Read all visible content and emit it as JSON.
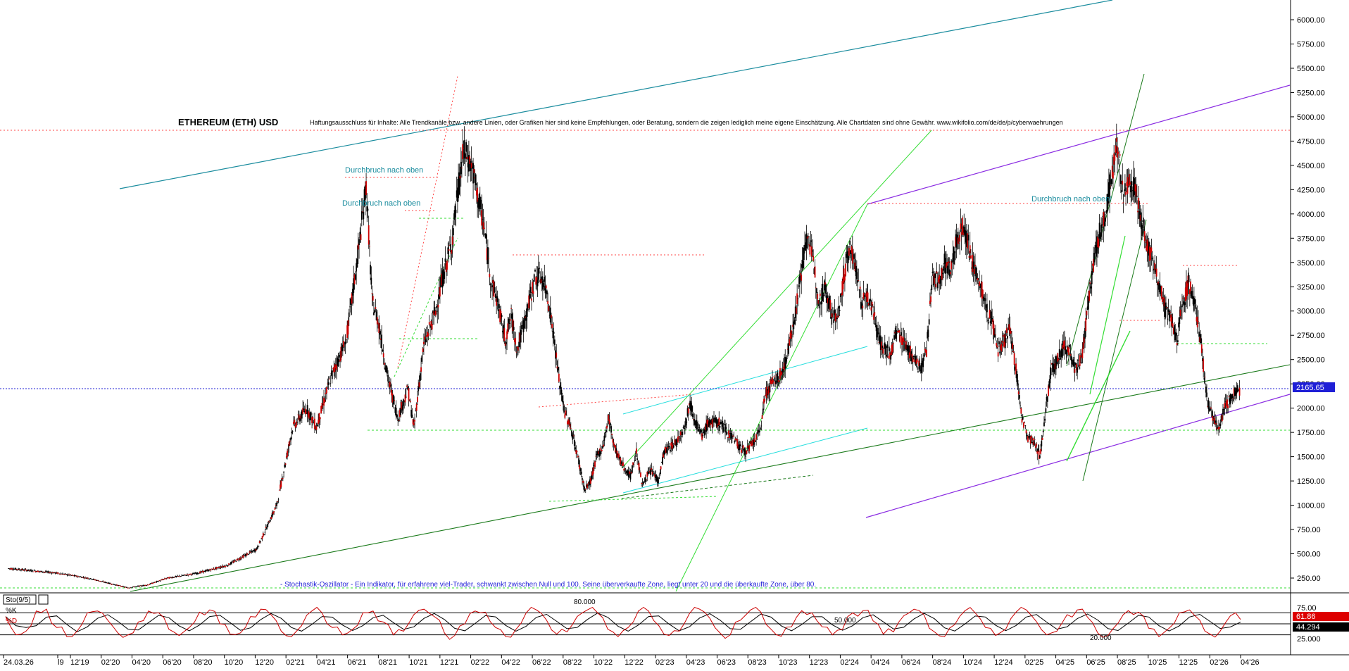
{
  "chart_data": {
    "type": "line",
    "title": "ETHEREUM (ETH) USD",
    "disclaimer": "Haftungsausschluss für Inhalte: Alle Trendkanäle bzw. andere Linien, oder Grafiken hier sind keine Empfehlungen, oder Beratung, sondern die zeigen lediglich meine eigene Einschätzung. Alle Chartdaten sind ohne Gewähr. www.wikifolio.com/de/de/p/cyberwaehrungen",
    "annotations": [
      "Durchbruch nach oben",
      "Durchbruch nach oben",
      "Durchbruch nach oben!"
    ],
    "stochastic_note": "- Stochastik-Oszillator - Ein Indikator, für erfahrene viel-Trader, schwankt zwischen Null und 100. Seine überverkaufte Zone, liegt unter 20 und die überkaufte Zone, über 80.",
    "y_ticks": [
      "6000.00",
      "5750.00",
      "5500.00",
      "5250.00",
      "5000.00",
      "4750.00",
      "4500.00",
      "4250.00",
      "4000.00",
      "3750.00",
      "3500.00",
      "3250.00",
      "3000.00",
      "2750.00",
      "2500.00",
      "2250.00",
      "2000.00",
      "1750.00",
      "1500.00",
      "1250.00",
      "1000.00",
      "750.00",
      "500.00",
      "250.00"
    ],
    "ylim": [
      0,
      6200
    ],
    "last_price": "2165.65",
    "x_ticks": [
      "24.03.26",
      "l9",
      "12'19",
      "02'20",
      "04'20",
      "06'20",
      "08'20",
      "10'20",
      "12'20",
      "02'21",
      "04'21",
      "06'21",
      "08'21",
      "10'21",
      "12'21",
      "02'22",
      "04'22",
      "06'22",
      "08'22",
      "10'22",
      "12'22",
      "02'23",
      "04'23",
      "06'23",
      "08'23",
      "10'23",
      "12'23",
      "02'24",
      "04'24",
      "06'24",
      "08'24",
      "10'24",
      "12'24",
      "02'25",
      "04'25",
      "06'25",
      "08'25",
      "10'25",
      "12'25",
      "02'26",
      "04'26"
    ],
    "price_path": [
      [
        0,
        350
      ],
      [
        25,
        300
      ],
      [
        40,
        250
      ],
      [
        50,
        200
      ],
      [
        60,
        150
      ],
      [
        70,
        180
      ],
      [
        80,
        250
      ],
      [
        95,
        300
      ],
      [
        110,
        380
      ],
      [
        125,
        550
      ],
      [
        135,
        1000
      ],
      [
        143,
        1800
      ],
      [
        150,
        2000
      ],
      [
        155,
        1800
      ],
      [
        162,
        2300
      ],
      [
        170,
        2700
      ],
      [
        176,
        3600
      ],
      [
        180,
        4300
      ],
      [
        183,
        3100
      ],
      [
        186,
        2900
      ],
      [
        191,
        2300
      ],
      [
        196,
        1900
      ],
      [
        201,
        2200
      ],
      [
        204,
        1800
      ],
      [
        209,
        2650
      ],
      [
        215,
        3000
      ],
      [
        218,
        3300
      ],
      [
        223,
        3700
      ],
      [
        226,
        4200
      ],
      [
        229,
        4650
      ],
      [
        233,
        4500
      ],
      [
        236,
        4200
      ],
      [
        239,
        3900
      ],
      [
        243,
        3300
      ],
      [
        246,
        3100
      ],
      [
        250,
        2700
      ],
      [
        253,
        2950
      ],
      [
        256,
        2600
      ],
      [
        261,
        3000
      ],
      [
        265,
        3350
      ],
      [
        268,
        3350
      ],
      [
        271,
        3200
      ],
      [
        274,
        2800
      ],
      [
        277,
        2300
      ],
      [
        280,
        1950
      ],
      [
        283,
        1800
      ],
      [
        287,
        1450
      ],
      [
        290,
        1150
      ],
      [
        293,
        1250
      ],
      [
        296,
        1500
      ],
      [
        299,
        1600
      ],
      [
        302,
        1900
      ],
      [
        305,
        1600
      ],
      [
        308,
        1450
      ],
      [
        311,
        1350
      ],
      [
        313,
        1300
      ],
      [
        316,
        1550
      ],
      [
        319,
        1200
      ],
      [
        321,
        1300
      ],
      [
        324,
        1350
      ],
      [
        327,
        1250
      ],
      [
        330,
        1550
      ],
      [
        333,
        1600
      ],
      [
        336,
        1650
      ],
      [
        340,
        1800
      ],
      [
        343,
        2050
      ],
      [
        346,
        1850
      ],
      [
        349,
        1700
      ],
      [
        352,
        1850
      ],
      [
        355,
        1850
      ],
      [
        358,
        1850
      ],
      [
        362,
        1750
      ],
      [
        365,
        1700
      ],
      [
        368,
        1600
      ],
      [
        371,
        1550
      ],
      [
        375,
        1650
      ],
      [
        378,
        1750
      ],
      [
        381,
        2150
      ],
      [
        384,
        2250
      ],
      [
        387,
        2300
      ],
      [
        390,
        2400
      ],
      [
        393,
        2650
      ],
      [
        396,
        3000
      ],
      [
        399,
        3400
      ],
      [
        402,
        3800
      ],
      [
        405,
        3500
      ],
      [
        408,
        3100
      ],
      [
        411,
        3250
      ],
      [
        414,
        3000
      ],
      [
        417,
        2900
      ],
      [
        420,
        3300
      ],
      [
        423,
        3650
      ],
      [
        426,
        3500
      ],
      [
        429,
        3100
      ],
      [
        432,
        3150
      ],
      [
        435,
        3050
      ],
      [
        438,
        2700
      ],
      [
        441,
        2600
      ],
      [
        444,
        2550
      ],
      [
        447,
        2800
      ],
      [
        450,
        2700
      ],
      [
        453,
        2600
      ],
      [
        456,
        2500
      ],
      [
        459,
        2400
      ],
      [
        462,
        2600
      ],
      [
        465,
        3350
      ],
      [
        468,
        3300
      ],
      [
        471,
        3500
      ],
      [
        474,
        3400
      ],
      [
        477,
        3700
      ],
      [
        480,
        3900
      ],
      [
        483,
        3700
      ],
      [
        486,
        3400
      ],
      [
        489,
        3300
      ],
      [
        492,
        3000
      ],
      [
        495,
        2900
      ],
      [
        498,
        2600
      ],
      [
        501,
        2700
      ],
      [
        504,
        2800
      ],
      [
        507,
        2400
      ],
      [
        510,
        1900
      ],
      [
        513,
        1700
      ],
      [
        516,
        1650
      ],
      [
        519,
        1500
      ],
      [
        522,
        2000
      ],
      [
        525,
        2400
      ],
      [
        528,
        2500
      ],
      [
        531,
        2650
      ],
      [
        534,
        2600
      ],
      [
        537,
        2400
      ],
      [
        540,
        2500
      ],
      [
        543,
        3000
      ],
      [
        546,
        3500
      ],
      [
        549,
        3800
      ],
      [
        552,
        4000
      ],
      [
        555,
        4400
      ],
      [
        558,
        4700
      ],
      [
        561,
        4200
      ],
      [
        564,
        4300
      ],
      [
        567,
        4300
      ],
      [
        570,
        3900
      ],
      [
        573,
        3700
      ],
      [
        576,
        3500
      ],
      [
        579,
        3300
      ],
      [
        582,
        3000
      ],
      [
        585,
        2900
      ],
      [
        588,
        2700
      ],
      [
        591,
        3100
      ],
      [
        594,
        3300
      ],
      [
        597,
        3050
      ],
      [
        600,
        2700
      ],
      [
        603,
        2100
      ],
      [
        606,
        1900
      ],
      [
        609,
        1800
      ],
      [
        612,
        2000
      ],
      [
        615,
        2100
      ],
      [
        618,
        2200
      ],
      [
        620,
        2165
      ]
    ],
    "stoch_k": [
      70,
      20,
      30,
      85,
      90,
      40,
      15,
      30,
      80,
      85,
      60,
      25,
      20,
      55,
      85,
      80,
      35,
      18,
      40,
      82,
      88,
      50,
      22,
      25,
      70,
      90,
      75,
      30,
      15,
      45,
      85,
      80,
      40,
      20,
      35,
      80,
      85,
      55,
      20,
      30,
      75,
      90,
      70,
      25,
      18,
      50,
      85,
      82,
      40,
      15,
      35,
      80,
      88,
      60,
      22,
      28,
      70,
      88,
      80,
      35,
      15,
      40,
      85,
      85,
      45,
      18,
      30,
      78,
      90,
      65,
      25,
      20,
      60,
      88,
      82,
      35,
      16,
      42,
      86,
      80,
      42,
      20,
      35,
      80,
      86,
      58,
      22,
      28,
      72,
      90,
      74,
      28,
      15,
      48,
      86,
      80,
      40,
      18,
      36,
      82,
      88,
      56,
      20,
      30,
      75,
      88,
      68,
      25,
      18,
      52,
      86,
      82,
      38,
      15,
      38,
      80,
      88,
      60,
      22,
      30,
      72,
      62
    ],
    "stoch_labels": [
      "Sto(9/5)",
      "%K",
      "%D"
    ],
    "stoch_levels": [
      "80.000",
      "50.000",
      "20.000"
    ],
    "stoch_ticks": [
      "75.00",
      "25.000"
    ],
    "stoch_readout": [
      "61.86",
      "44.294"
    ],
    "colors": {
      "candles": "#000000",
      "down_candles": "#cc0000",
      "teal_channel": "#1a8c9e",
      "violet_channel": "#8a2be2",
      "green_trend": "#1a7a1a",
      "light_green": "#33dd33",
      "cyan": "#22dddd",
      "red_dotted": "#ff4444",
      "k_line": "#cc0000",
      "price_box": "#1f1fd6"
    }
  }
}
